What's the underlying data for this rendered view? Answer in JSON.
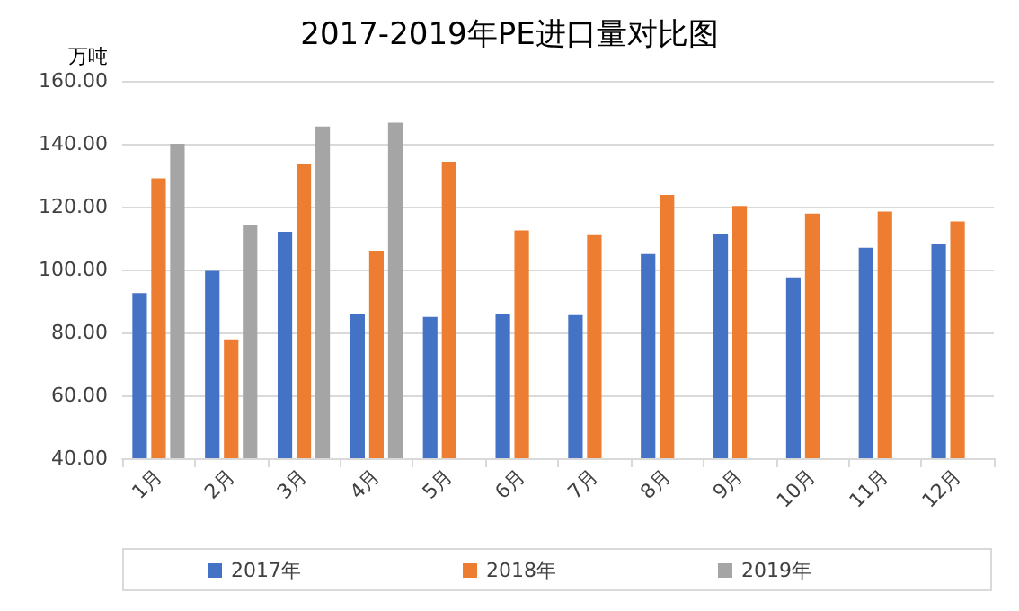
{
  "chart_data": {
    "type": "bar",
    "title": "2017-2019年PE进口量对比图",
    "ylabel": "万吨",
    "categories": [
      "1月",
      "2月",
      "3月",
      "4月",
      "5月",
      "6月",
      "7月",
      "8月",
      "9月",
      "10月",
      "11月",
      "12月"
    ],
    "series": [
      {
        "name": "2017年",
        "color": "#4472c4",
        "values": [
          92.5,
          99.6,
          112,
          86,
          84.9,
          86,
          85.5,
          104.9,
          111.4,
          97.5,
          106.9,
          108.2
        ]
      },
      {
        "name": "2018年",
        "color": "#ed7d31",
        "values": [
          129,
          77.8,
          133.7,
          106,
          134.3,
          112.4,
          111.2,
          123.7,
          120.2,
          117.8,
          118.4,
          115.3
        ]
      },
      {
        "name": "2019年",
        "color": "#a5a5a5",
        "values": [
          140,
          114.3,
          145.5,
          146.7,
          null,
          null,
          null,
          null,
          null,
          null,
          null,
          null
        ]
      }
    ],
    "ylim": [
      40,
      160
    ],
    "yticks": [
      {
        "value": 40,
        "label": "40.00"
      },
      {
        "value": 60,
        "label": "60.00"
      },
      {
        "value": 80,
        "label": "80.00"
      },
      {
        "value": 100,
        "label": "100.00"
      },
      {
        "value": 120,
        "label": "120.00"
      },
      {
        "value": 140,
        "label": "140.00"
      },
      {
        "value": 160,
        "label": "160.00"
      }
    ],
    "grid": "y",
    "legend": "bottom"
  }
}
